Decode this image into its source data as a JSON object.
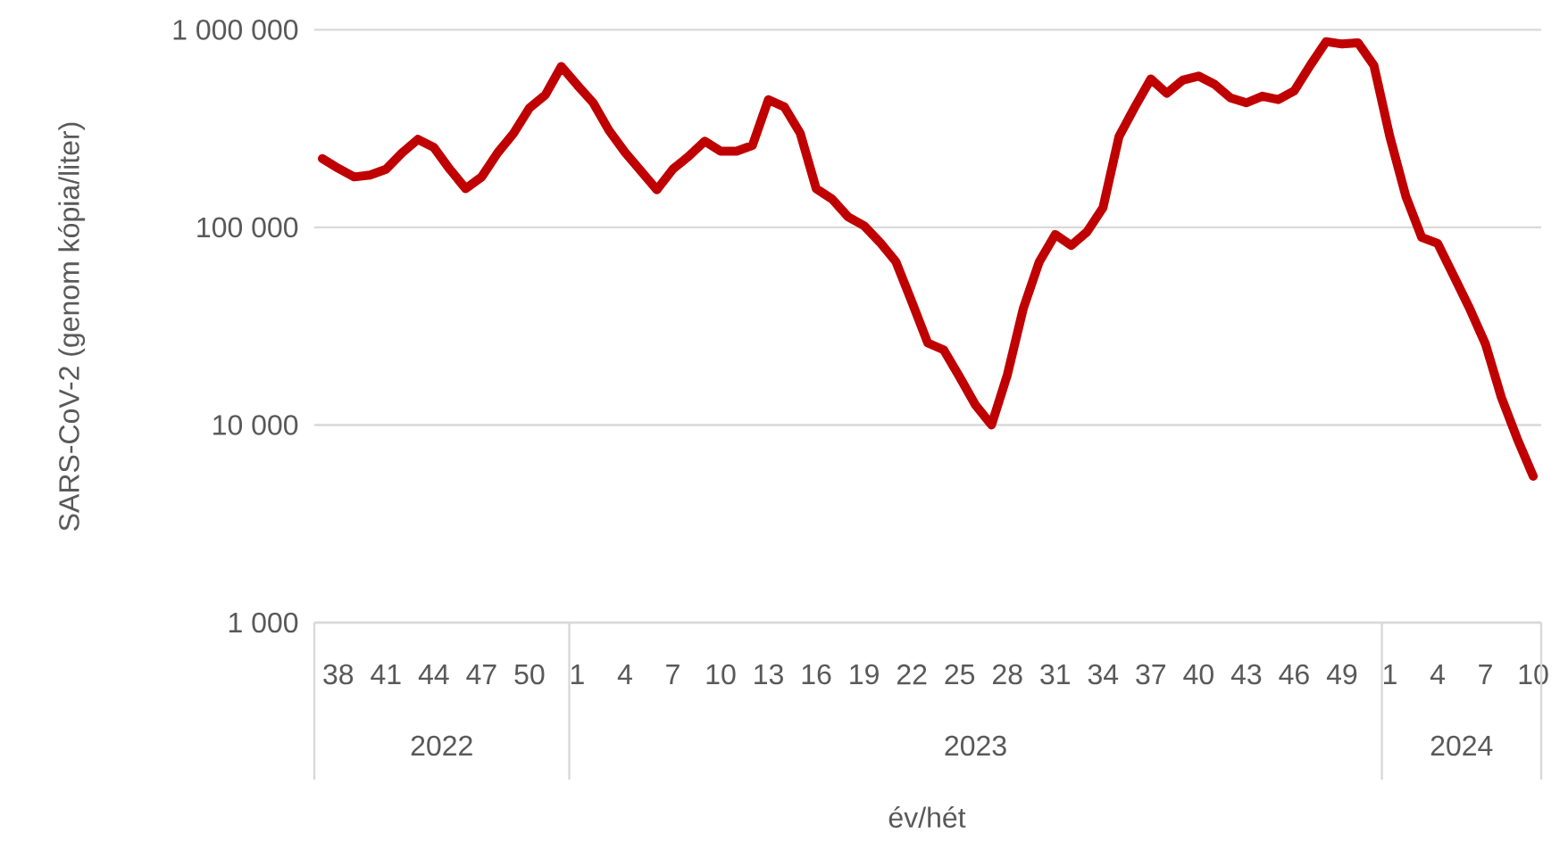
{
  "chart_data": {
    "type": "line",
    "xlabel": "év/hét",
    "ylabel": "SARS-CoV-2 (genom kópia/liter)",
    "categories": [
      null,
      "38",
      null,
      null,
      "41",
      null,
      null,
      "44",
      null,
      null,
      "47",
      null,
      null,
      "50",
      null,
      null,
      "1",
      null,
      null,
      "4",
      null,
      null,
      "7",
      null,
      null,
      "10",
      null,
      null,
      "13",
      null,
      null,
      "16",
      null,
      null,
      "19",
      null,
      null,
      "22",
      null,
      null,
      "25",
      null,
      null,
      "28",
      null,
      null,
      "31",
      null,
      null,
      "34",
      null,
      null,
      "37",
      null,
      null,
      "40",
      null,
      null,
      "43",
      null,
      null,
      "46",
      null,
      null,
      "49",
      null,
      null,
      "1",
      null,
      null,
      "4",
      null,
      null,
      "7",
      null,
      null,
      "10"
    ],
    "series": [
      {
        "color": "#c00000",
        "values": [
          223000,
          199000,
          180000,
          184000,
          197000,
          238000,
          279000,
          254000,
          197000,
          157000,
          180000,
          238000,
          299000,
          402000,
          468000,
          652000,
          525000,
          427000,
          309000,
          240000,
          193000,
          155000,
          197000,
          229000,
          273000,
          243000,
          243000,
          260000,
          443000,
          407000,
          299000,
          157000,
          139000,
          113000,
          102000,
          84000,
          67000,
          42000,
          26000,
          24000,
          17500,
          12600,
          10000,
          18000,
          39000,
          67000,
          92000,
          81000,
          95000,
          126000,
          288000,
          407000,
          564000,
          477000,
          556000,
          583000,
          530000,
          452000,
          427000,
          461000,
          443000,
          491000,
          660000,
          871000,
          847000,
          859000,
          660000,
          288000,
          144000,
          89000,
          83000,
          57000,
          39000,
          25700,
          13800,
          8500,
          5500
        ]
      }
    ],
    "ylim": [
      1000,
      1000000
    ],
    "yticks": [
      {
        "value": 1000,
        "label": "1 000"
      },
      {
        "value": 10000,
        "label": "10 000"
      },
      {
        "value": 100000,
        "label": "100 000"
      },
      {
        "value": 1000000,
        "label": "1 000 000"
      }
    ],
    "log": "y",
    "grid": "y",
    "annotations": [
      "2022",
      "2023",
      "2024"
    ]
  }
}
